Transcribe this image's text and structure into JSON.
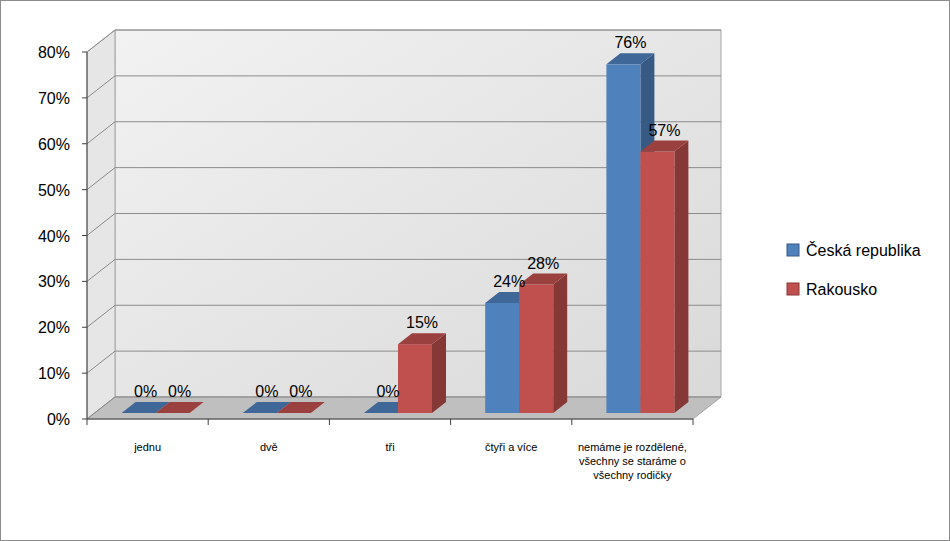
{
  "chart_data": {
    "type": "bar",
    "categories": [
      "jednu",
      "dvě",
      "tři",
      "čtyři a více",
      "nemáme je rozdělené, všechny se staráme o všechny rodičky"
    ],
    "series": [
      {
        "name": "Česká republika",
        "color": "#4f81bd",
        "values": [
          0,
          0,
          0,
          24,
          76
        ],
        "value_labels": [
          "0%",
          "0%",
          "0%",
          "24%",
          "76%"
        ]
      },
      {
        "name": "Rakousko",
        "color": "#c0504d",
        "values": [
          0,
          0,
          15,
          28,
          57
        ],
        "value_labels": [
          "0%",
          "0%",
          "15%",
          "28%",
          "57%"
        ]
      }
    ],
    "ylim": [
      0,
      80
    ],
    "yticks": [
      {
        "value": 0,
        "label": "0%"
      },
      {
        "value": 10,
        "label": "10%"
      },
      {
        "value": 20,
        "label": "20%"
      },
      {
        "value": 30,
        "label": "30%"
      },
      {
        "value": 40,
        "label": "40%"
      },
      {
        "value": 50,
        "label": "50%"
      },
      {
        "value": 60,
        "label": "60%"
      },
      {
        "value": 70,
        "label": "70%"
      },
      {
        "value": 80,
        "label": "80%"
      }
    ],
    "grid": true,
    "legend": "right",
    "data_labels": true
  }
}
